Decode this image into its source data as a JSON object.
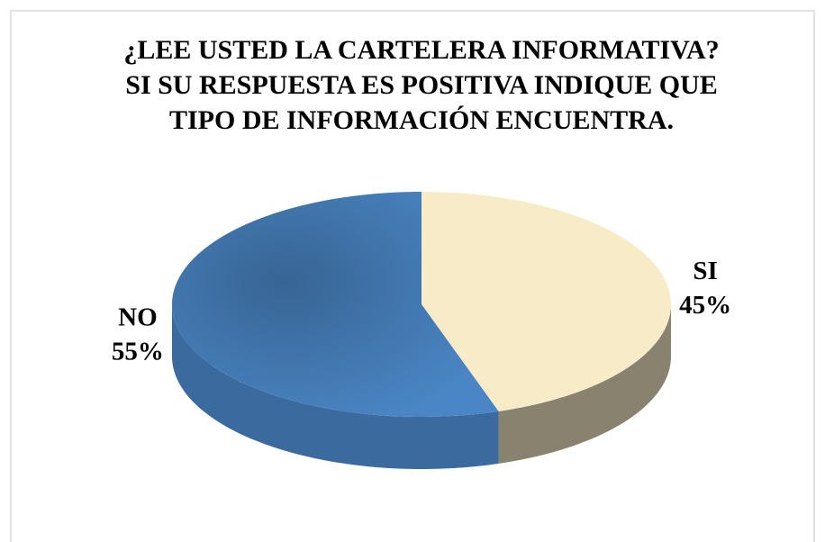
{
  "chart_data": {
    "type": "pie",
    "title": [
      "¿LEE USTED LA CARTELERA INFORMATIVA?",
      "SI SU RESPUESTA ES POSITIVA INDIQUE QUE",
      "TIPO DE INFORMACIÓN ENCUENTRA."
    ],
    "categories": [
      "SI",
      "NO"
    ],
    "values": [
      45,
      55
    ],
    "value_labels": [
      "45%",
      "55%"
    ],
    "colors": [
      "#f8ecc8",
      "#4a86c5"
    ]
  }
}
